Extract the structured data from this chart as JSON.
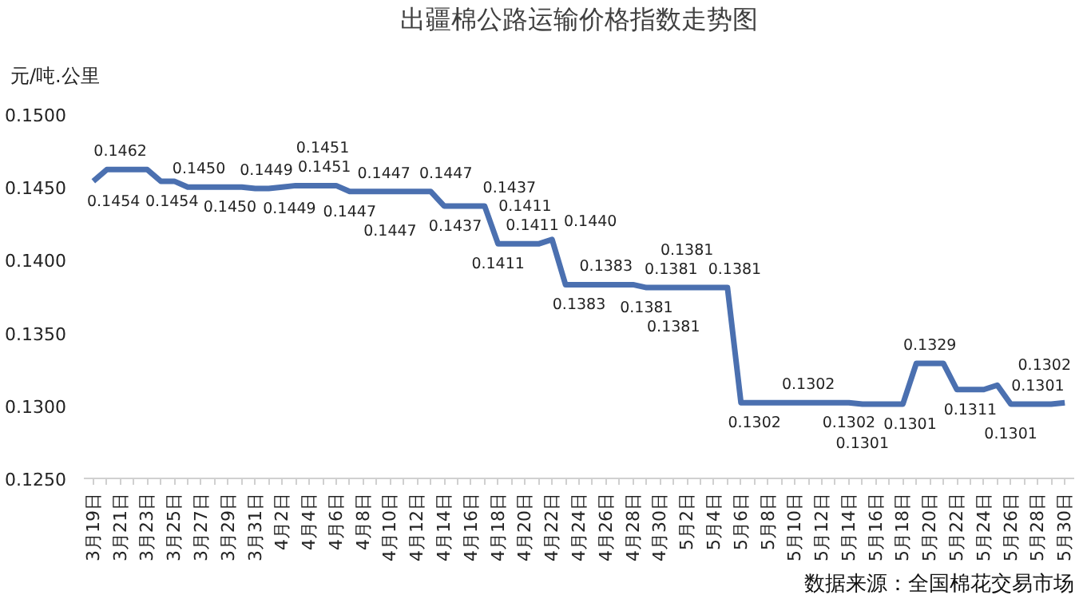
{
  "chart_data": {
    "type": "line",
    "title": "出疆棉公路运输价格指数走势图",
    "ylabel": "元/吨.公里",
    "annotations": [
      "数据来源：全国棉花交易市场",
      {
        "text": "0.1440",
        "x": "4月22日",
        "y": 0.1414
      }
    ],
    "categories": [
      "3月19日",
      null,
      "3月21日",
      null,
      "3月23日",
      null,
      "3月25日",
      null,
      "3月27日",
      null,
      "3月29日",
      null,
      "3月31日",
      null,
      "4月2日",
      null,
      "4月4日",
      null,
      "4月6日",
      null,
      "4月8日",
      null,
      "4月10日",
      null,
      "4月12日",
      null,
      "4月14日",
      null,
      "4月16日",
      null,
      "4月18日",
      null,
      "4月20日",
      null,
      "4月22日",
      null,
      "4月24日",
      null,
      "4月26日",
      null,
      "4月28日",
      null,
      "4月30日",
      null,
      "5月2日",
      null,
      "5月4日",
      null,
      "5月6日",
      null,
      "5月8日",
      null,
      "5月10日",
      null,
      "5月12日",
      null,
      "5月14日",
      null,
      "5月16日",
      null,
      "5月18日",
      null,
      "5月20日",
      null,
      "5月22日",
      null,
      "5月24日",
      null,
      "5月26日",
      null,
      "5月28日",
      null,
      "5月30日"
    ],
    "series": [
      {
        "color": "#4b70b0",
        "values": [
          0.1454,
          0.1462,
          0.1462,
          0.1462,
          0.1462,
          0.1454,
          0.1454,
          0.145,
          0.145,
          0.145,
          0.145,
          0.145,
          0.1449,
          0.1449,
          0.145,
          0.1451,
          0.1451,
          0.1451,
          0.1451,
          0.1447,
          0.1447,
          0.1447,
          0.1447,
          0.1447,
          0.1447,
          0.1447,
          0.1437,
          0.1437,
          0.1437,
          0.1437,
          0.1411,
          0.1411,
          0.1411,
          0.1411,
          0.1414,
          0.1383,
          0.1383,
          0.1383,
          0.1383,
          0.1383,
          0.1383,
          0.1381,
          0.1381,
          0.1381,
          0.1381,
          0.1381,
          0.1381,
          0.1381,
          0.1302,
          0.1302,
          0.1302,
          0.1302,
          0.1302,
          0.1302,
          0.1302,
          0.1302,
          0.1302,
          0.1301,
          0.1301,
          0.1301,
          0.1301,
          0.1329,
          0.1329,
          0.1329,
          0.1311,
          0.1311,
          0.1311,
          0.1314,
          0.1301,
          0.1301,
          0.1301,
          0.1301,
          0.1302
        ],
        "value_labels": [
          "0.1454",
          null,
          "0.1462",
          null,
          null,
          "0.1454",
          null,
          "0.1450",
          "0.1450",
          null,
          null,
          null,
          "0.1449",
          "0.1449",
          null,
          "0.1451",
          null,
          "0.1451",
          null,
          "0.1447",
          "0.1447",
          null,
          "0.1447",
          null,
          "0.1447",
          null,
          "0.1437",
          null,
          "0.1437",
          null,
          "0.1411",
          "0.1411",
          "0.1411",
          null,
          null,
          null,
          "0.1383",
          null,
          "0.1383",
          null,
          null,
          "0.1381",
          "0.1381",
          "0.1381",
          "0.1381",
          null,
          "0.1381",
          null,
          null,
          "0.1302",
          null,
          null,
          null,
          "0.1302",
          null,
          null,
          "0.1302",
          "0.1301",
          null,
          "0.1301",
          null,
          null,
          "0.1329",
          null,
          null,
          "0.1311",
          null,
          null,
          "0.1301",
          null,
          "0.1301",
          null,
          "0.1302"
        ]
      }
    ],
    "ylim": [
      0.125,
      0.15
    ],
    "yticks": [
      {
        "value": 0.125,
        "label": "0.1250"
      },
      {
        "value": 0.13,
        "label": "0.1300"
      },
      {
        "value": 0.135,
        "label": "0.1350"
      },
      {
        "value": 0.14,
        "label": "0.1400"
      },
      {
        "value": 0.145,
        "label": "0.1450"
      },
      {
        "value": 0.15,
        "label": "0.1500"
      }
    ]
  }
}
